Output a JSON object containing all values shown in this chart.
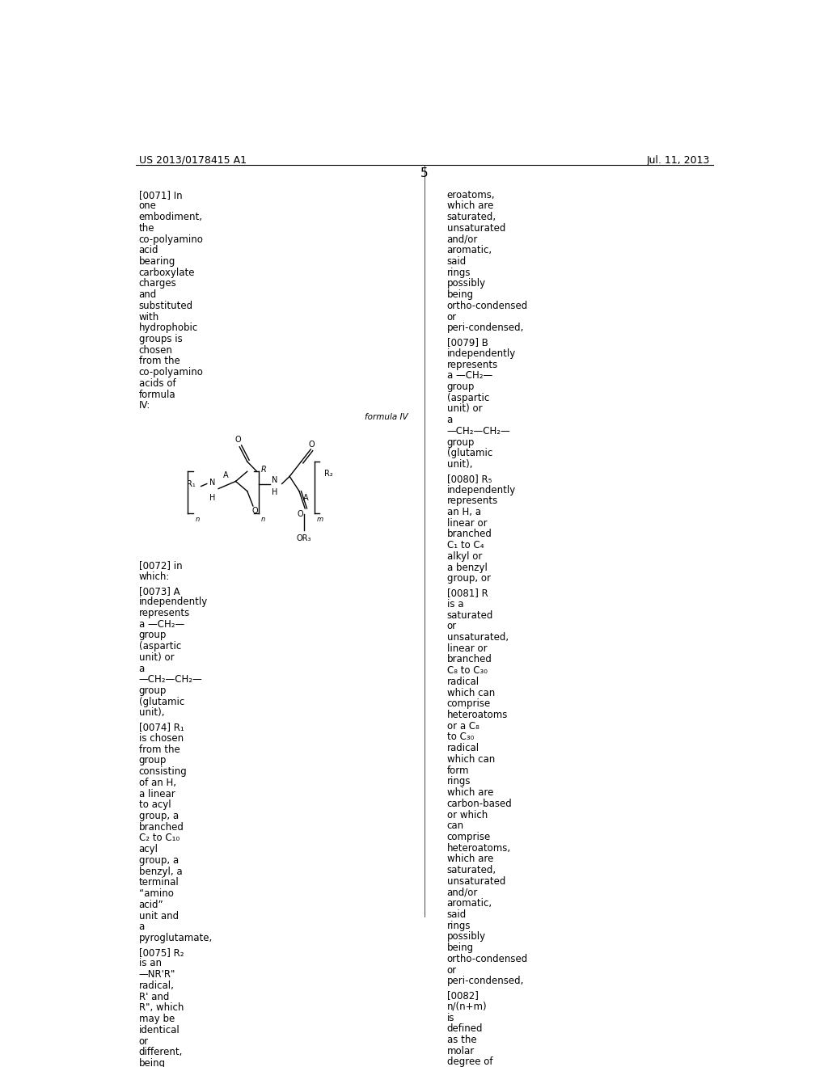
{
  "background_color": "#ffffff",
  "page_number": "5",
  "header_left": "US 2013/0178415 A1",
  "header_right": "Jul. 11, 2013",
  "font_size_body": 8.5,
  "font_size_header": 9.0,
  "font_size_page_num": 11.0
}
